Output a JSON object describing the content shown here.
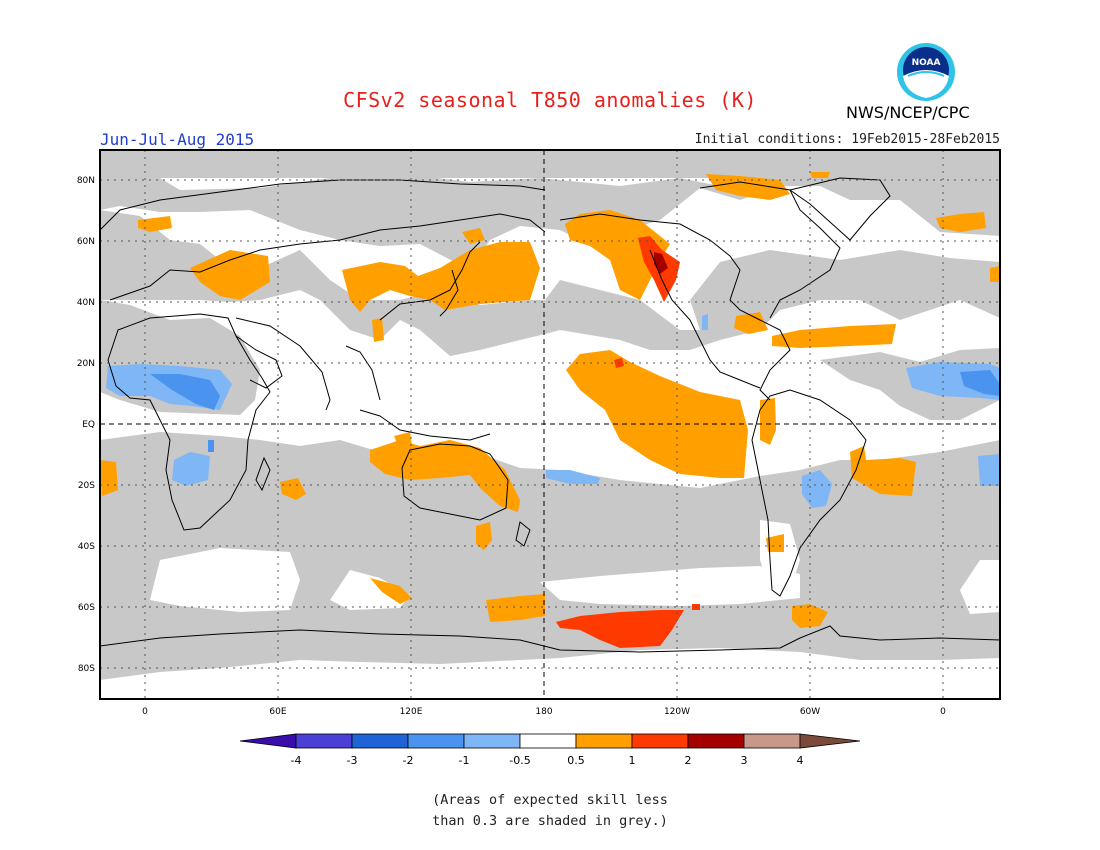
{
  "header": {
    "title": "CFSv2 seasonal T850 anomalies (K)",
    "season": "Jun-Jul-Aug 2015",
    "initial_conditions": "Initial conditions: 19Feb2015-28Feb2015",
    "agency": "NWS/NCEP/CPC",
    "logo_text": "NOAA"
  },
  "map": {
    "projection": "cylindrical",
    "lat_labels": [
      "80N",
      "60N",
      "40N",
      "20N",
      "EQ",
      "20S",
      "40S",
      "60S",
      "80S"
    ],
    "lon_labels": [
      "0",
      "60E",
      "120E",
      "180",
      "120W",
      "60W",
      "0"
    ],
    "reference_lines": [
      "Equator (dashed)",
      "Dateline 180 (dashed)"
    ],
    "grid": "dotted",
    "colors": {
      "skill_grey": "#c8c8c8",
      "pos_0_5_1": "#ff9f00",
      "pos_1_2": "#ff3a00",
      "pos_2_3": "#a50000",
      "neg_0_5_1": "#7fb6f5",
      "neg_1_2": "#4a94ef"
    }
  },
  "legend": {
    "labels": [
      "-4",
      "-3",
      "-2",
      "-1",
      "-0.5",
      "0.5",
      "1",
      "2",
      "3",
      "4"
    ],
    "colors": [
      "#3a0dad",
      "#4b3fd6",
      "#1f64d6",
      "#4a94ef",
      "#7fb6f5",
      "#ffffff",
      "#ff9f00",
      "#ff3a00",
      "#a50000",
      "#c8998a",
      "#7b4a3a"
    ]
  },
  "note": {
    "line1": "(Areas of expected skill less",
    "line2": "than 0.3 are shaded in grey.)"
  }
}
